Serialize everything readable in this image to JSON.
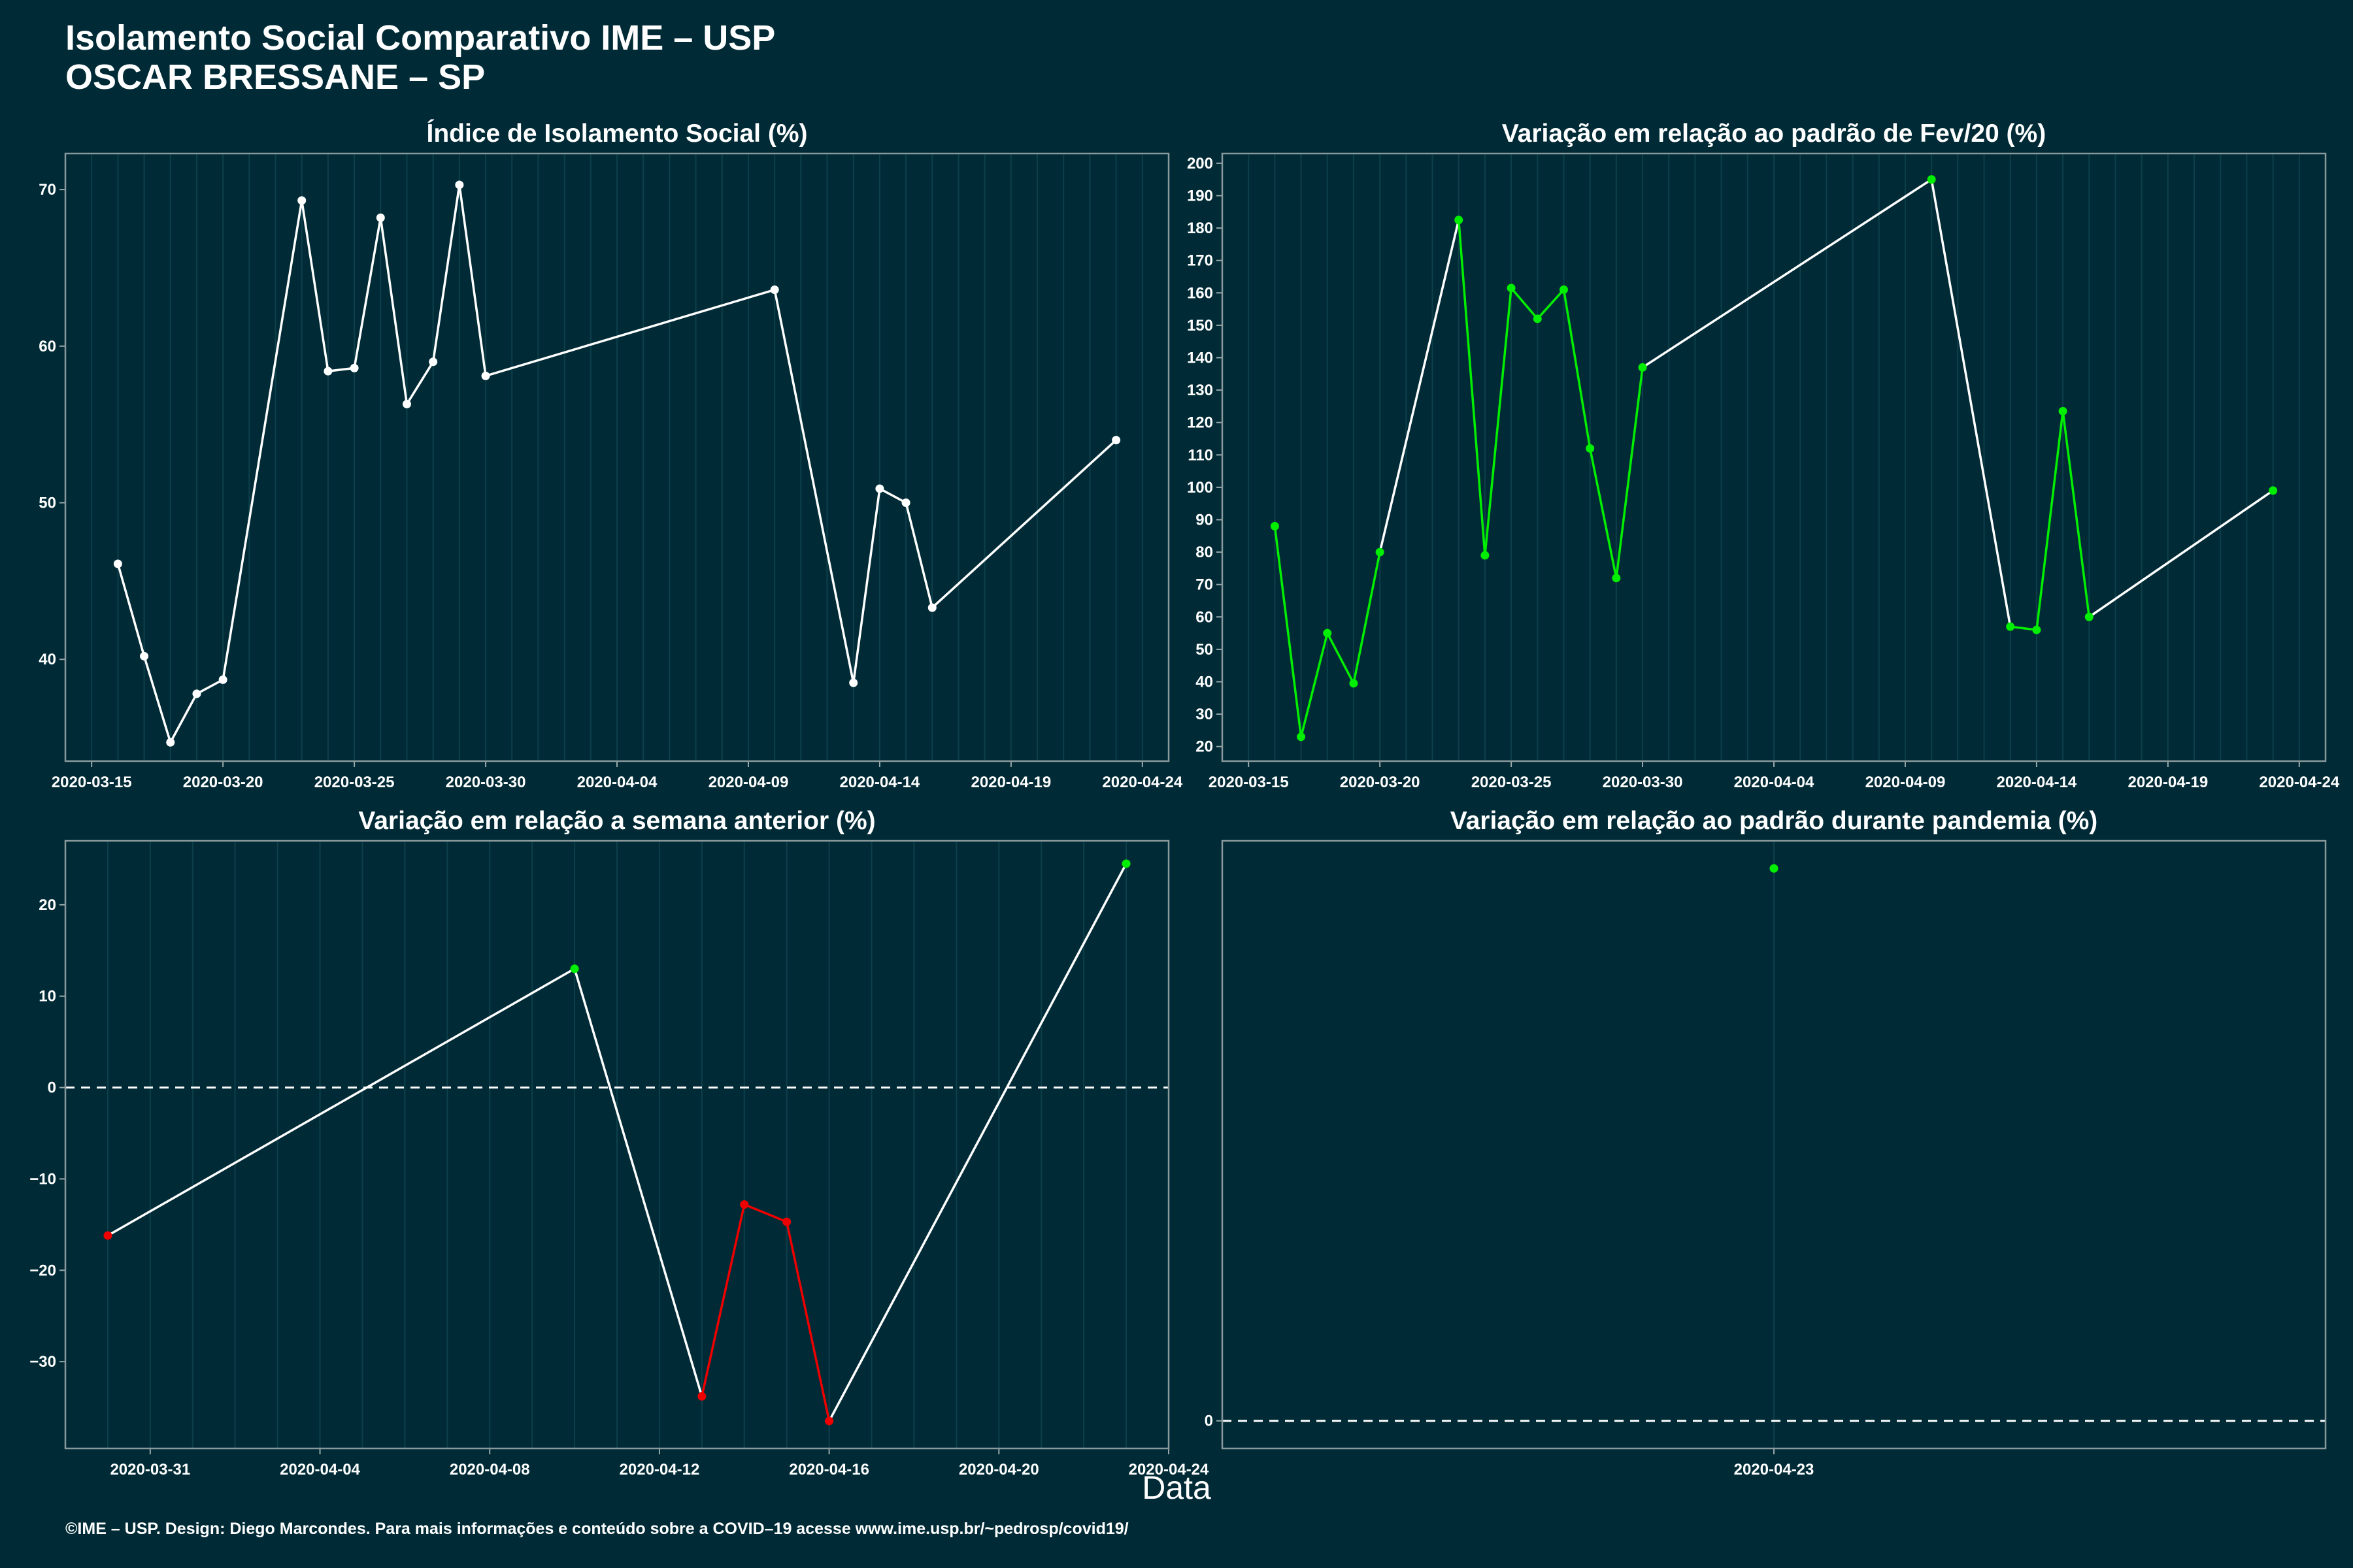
{
  "title": "Isolamento Social Comparativo IME – USP",
  "subtitle": "OSCAR BRESSANE – SP",
  "xlabel": "Data",
  "footer": "©IME – USP. Design: Diego Marcondes. Para mais informações e conteúdo sobre a COVID–19 acesse www.ime.usp.br/~pedrosp/covid19/",
  "colors": {
    "background": "#002b36",
    "line": "#ffffff",
    "up": "#00ee00",
    "down": "#ee0000",
    "grid": "#0d3f4a"
  },
  "chart_data": [
    {
      "type": "line",
      "title": "Índice de Isolamento Social (%)",
      "xlim": [
        "2020-03-14",
        "2020-04-25"
      ],
      "ylim": [
        33.5,
        72.3
      ],
      "xticks": [
        "2020-03-15",
        "2020-03-20",
        "2020-03-25",
        "2020-03-30",
        "2020-04-04",
        "2020-04-09",
        "2020-04-14",
        "2020-04-19",
        "2020-04-24"
      ],
      "yticks": [
        40,
        50,
        60,
        70
      ],
      "hline": null,
      "series": [
        {
          "x": [
            "2020-03-16",
            "2020-03-17",
            "2020-03-18",
            "2020-03-19",
            "2020-03-20",
            "2020-03-23",
            "2020-03-24",
            "2020-03-25",
            "2020-03-26",
            "2020-03-27",
            "2020-03-28",
            "2020-03-29",
            "2020-03-30",
            "2020-04-10",
            "2020-04-13",
            "2020-04-14",
            "2020-04-15",
            "2020-04-16",
            "2020-04-23"
          ],
          "y": [
            46.1,
            40.2,
            34.7,
            37.8,
            38.7,
            69.3,
            58.4,
            58.6,
            68.2,
            56.3,
            59.0,
            70.3,
            58.1,
            63.6,
            38.5,
            50.9,
            50.0,
            43.3,
            54.0
          ],
          "point_colors": [
            "line",
            "line",
            "line",
            "line",
            "line",
            "line",
            "line",
            "line",
            "line",
            "line",
            "line",
            "line",
            "line",
            "line",
            "line",
            "line",
            "line",
            "line",
            "line"
          ],
          "segment_colors": [
            "line",
            "line",
            "line",
            "line",
            "line",
            "line",
            "line",
            "line",
            "line",
            "line",
            "line",
            "line",
            "line",
            "line",
            "line",
            "line",
            "line",
            "line"
          ]
        }
      ]
    },
    {
      "type": "line",
      "title": "Variação em relação ao padrão de Fev/20 (%)",
      "xlim": [
        "2020-03-14",
        "2020-04-25"
      ],
      "ylim": [
        15.5,
        203
      ],
      "xticks": [
        "2020-03-15",
        "2020-03-20",
        "2020-03-25",
        "2020-03-30",
        "2020-04-04",
        "2020-04-09",
        "2020-04-14",
        "2020-04-19",
        "2020-04-24"
      ],
      "yticks": [
        20,
        30,
        40,
        50,
        60,
        70,
        80,
        90,
        100,
        110,
        120,
        130,
        140,
        150,
        160,
        170,
        180,
        190,
        200
      ],
      "hline": null,
      "series": [
        {
          "x": [
            "2020-03-16",
            "2020-03-17",
            "2020-03-18",
            "2020-03-19",
            "2020-03-20",
            "2020-03-23",
            "2020-03-24",
            "2020-03-25",
            "2020-03-26",
            "2020-03-27",
            "2020-03-28",
            "2020-03-29",
            "2020-03-30",
            "2020-04-10",
            "2020-04-13",
            "2020-04-14",
            "2020-04-15",
            "2020-04-16",
            "2020-04-23"
          ],
          "y": [
            88,
            23,
            55,
            39.5,
            80,
            182.5,
            79,
            161.5,
            152,
            161,
            112,
            72,
            137,
            195,
            57,
            56,
            123.5,
            60,
            99
          ],
          "point_colors": [
            "up",
            "up",
            "up",
            "up",
            "up",
            "up",
            "up",
            "up",
            "up",
            "up",
            "up",
            "up",
            "up",
            "up",
            "up",
            "up",
            "up",
            "up",
            "up"
          ],
          "segment_colors": [
            "up",
            "up",
            "up",
            "up",
            "line",
            "up",
            "up",
            "up",
            "up",
            "up",
            "up",
            "up",
            "line",
            "line",
            "up",
            "up",
            "up",
            "line"
          ]
        }
      ]
    },
    {
      "type": "line",
      "title": "Variação em relação a semana anterior (%)",
      "xlim": [
        "2020-03-29",
        "2020-04-24"
      ],
      "ylim": [
        -39.5,
        27
      ],
      "xticks": [
        "2020-03-31",
        "2020-04-04",
        "2020-04-08",
        "2020-04-12",
        "2020-04-16",
        "2020-04-20",
        "2020-04-24"
      ],
      "yticks": [
        -30,
        -20,
        -10,
        0,
        10,
        20
      ],
      "hline": 0,
      "series": [
        {
          "x": [
            "2020-03-30",
            "2020-04-10",
            "2020-04-13",
            "2020-04-14",
            "2020-04-15",
            "2020-04-16",
            "2020-04-23"
          ],
          "y": [
            -16.2,
            13,
            -33.8,
            -12.8,
            -14.7,
            -36.5,
            24.5
          ],
          "point_colors": [
            "down",
            "up",
            "down",
            "down",
            "down",
            "down",
            "up"
          ],
          "segment_colors": [
            "line",
            "line",
            "down",
            "down",
            "down",
            "line"
          ]
        }
      ]
    },
    {
      "type": "scatter",
      "title": "Variação em relação ao padrão durante pandemia (%)",
      "xlim": [
        "2020-04-22",
        "2020-04-24"
      ],
      "ylim": [
        -3,
        63
      ],
      "xticks": [
        "2020-04-23"
      ],
      "yticks": [
        0
      ],
      "hline": 0,
      "series": [
        {
          "x": [
            "2020-04-23"
          ],
          "y": [
            60
          ],
          "point_colors": [
            "up"
          ],
          "segment_colors": []
        }
      ]
    }
  ]
}
